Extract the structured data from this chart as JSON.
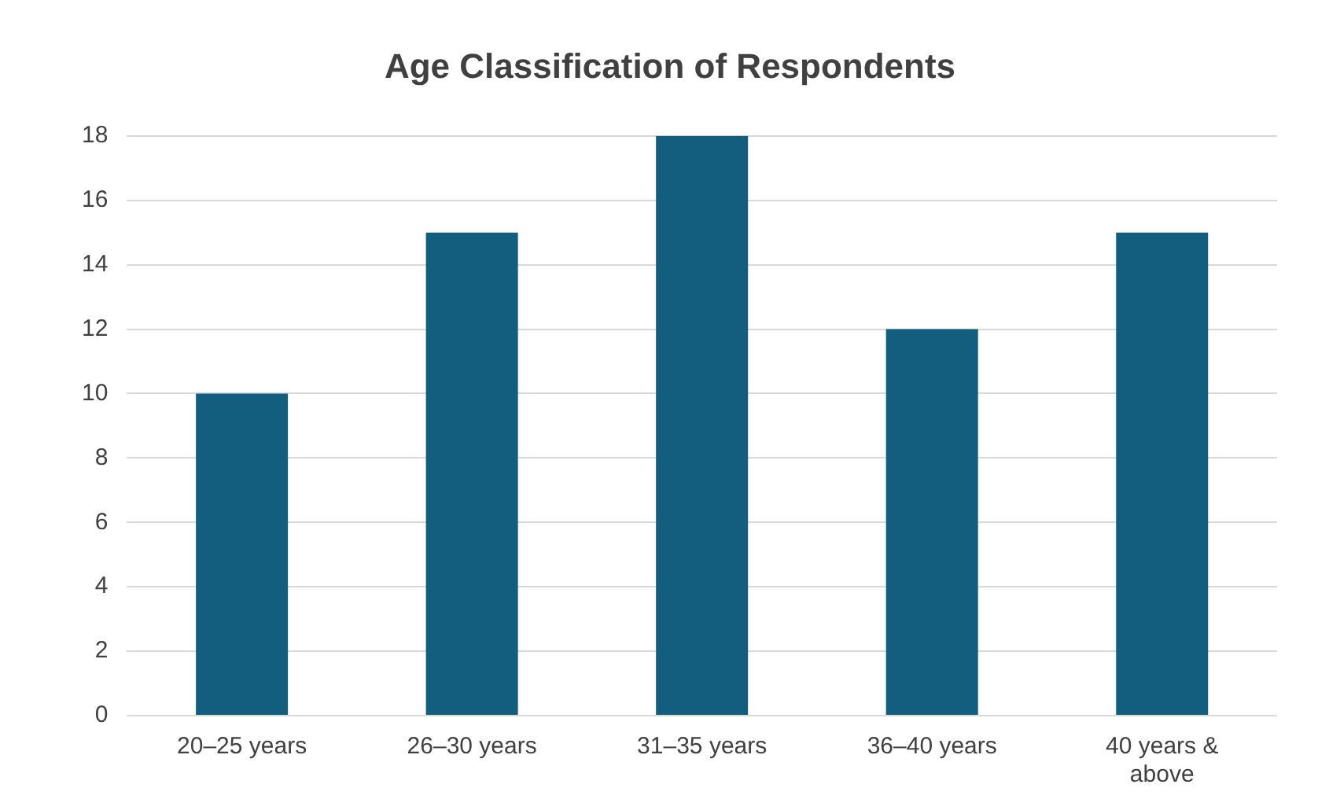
{
  "chart_data": {
    "type": "bar",
    "title": "Age Classification of Respondents",
    "categories": [
      "20–25 years",
      "26–30 years",
      "31–35 years",
      "36–40 years",
      "40 years & above"
    ],
    "values": [
      10,
      15,
      18,
      12,
      15
    ],
    "color": "#135e7e",
    "ylim": [
      0,
      18
    ],
    "yticks": [
      0,
      2,
      4,
      6,
      8,
      10,
      12,
      14,
      16,
      18
    ],
    "grid": "y",
    "legend": false
  }
}
